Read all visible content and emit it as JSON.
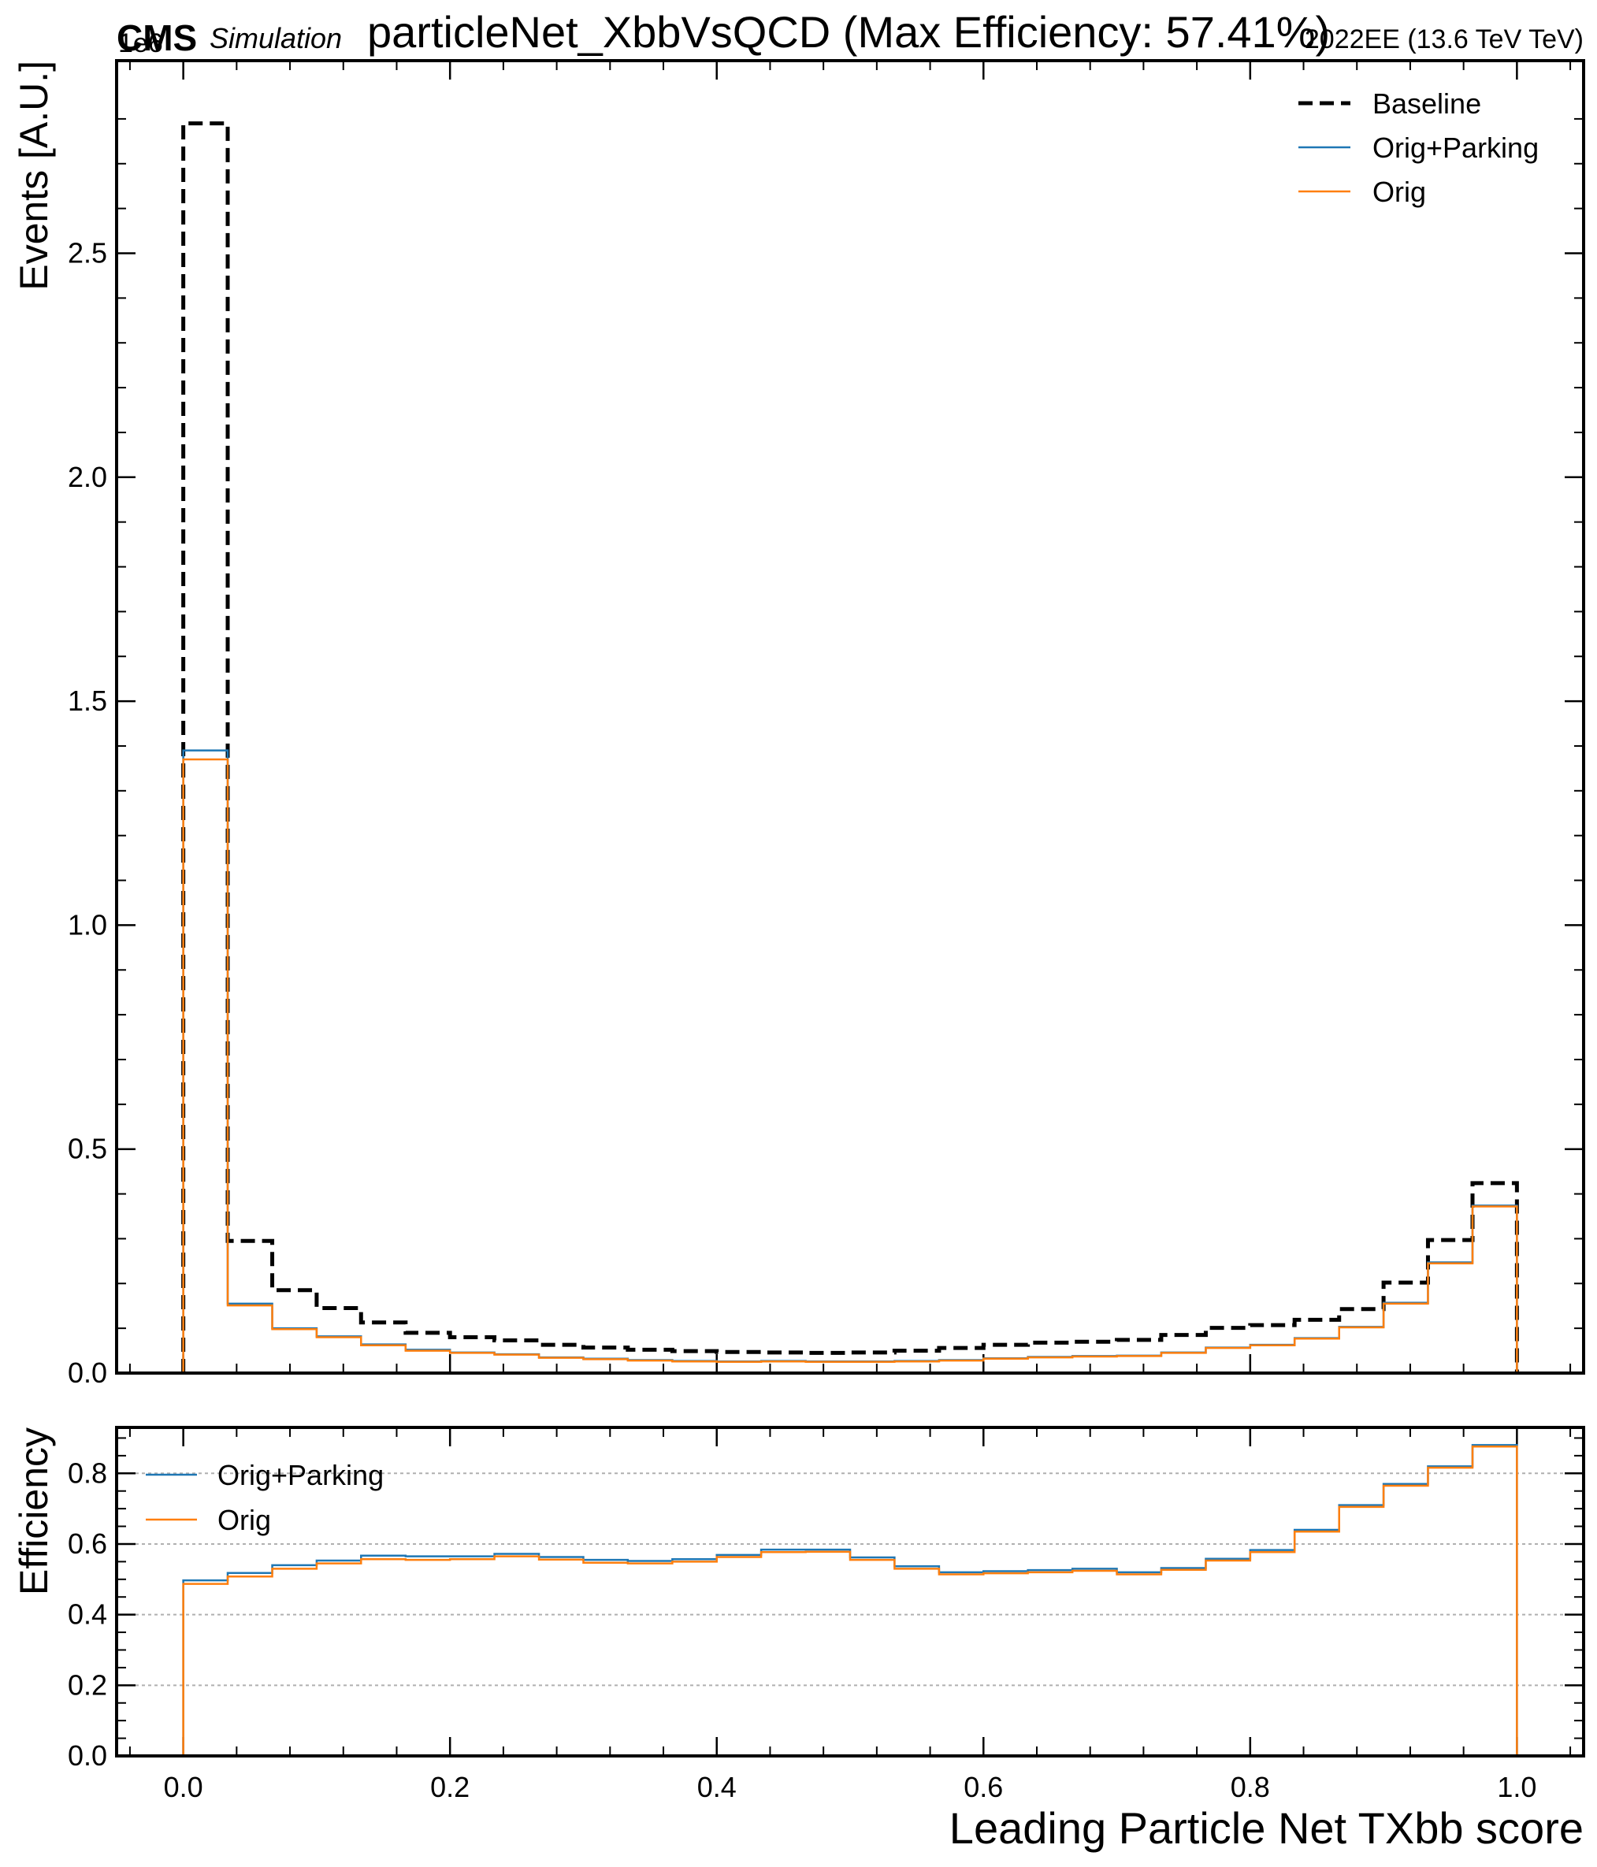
{
  "header": {
    "cms": "CMS",
    "sim": "Simulation",
    "title": "particleNet_XbbVsQCD (Max Efficiency: 57.41%)",
    "lumi_left": "1e6",
    "lumi_right": "2022EE (13.6 TeV TeV)"
  },
  "chart_data": [
    {
      "type": "line",
      "style": "step histogram",
      "panel": "main",
      "xlabel": "Leading Particle Net TXbb score",
      "ylabel": "Events [A.U.]",
      "xlim": [
        -0.05,
        1.05
      ],
      "ylim": [
        0,
        2.93
      ],
      "xticks": [
        0.0,
        0.2,
        0.4,
        0.6,
        0.8,
        1.0
      ],
      "xtick_labels": [
        "0.0",
        "0.2",
        "0.4",
        "0.6",
        "0.8",
        "1.0"
      ],
      "yticks": [
        0.0,
        0.5,
        1.0,
        1.5,
        2.0,
        2.5
      ],
      "ytick_labels": [
        "0.0",
        "0.5",
        "1.0",
        "1.5",
        "2.0",
        "2.5"
      ],
      "bin_edges": [
        0.0,
        0.0333,
        0.0667,
        0.1,
        0.1333,
        0.1667,
        0.2,
        0.2333,
        0.2667,
        0.3,
        0.3333,
        0.3667,
        0.4,
        0.4333,
        0.4667,
        0.5,
        0.5333,
        0.5667,
        0.6,
        0.6333,
        0.6667,
        0.7,
        0.7333,
        0.7667,
        0.8,
        0.8333,
        0.8667,
        0.9,
        0.9333,
        0.9667,
        1.0
      ],
      "legend_position": "upper right",
      "series": [
        {
          "name": "Baseline",
          "color": "#000000",
          "linestyle": "dashed",
          "values": [
            2.79,
            0.295,
            0.185,
            0.145,
            0.113,
            0.09,
            0.08,
            0.073,
            0.063,
            0.057,
            0.052,
            0.049,
            0.047,
            0.046,
            0.045,
            0.046,
            0.05,
            0.056,
            0.063,
            0.068,
            0.07,
            0.074,
            0.085,
            0.101,
            0.107,
            0.119,
            0.143,
            0.202,
            0.297,
            0.424
          ]
        },
        {
          "name": "Orig+Parking",
          "color": "#1f77b4",
          "linestyle": "solid",
          "values": [
            1.39,
            0.155,
            0.1,
            0.082,
            0.064,
            0.052,
            0.046,
            0.042,
            0.035,
            0.032,
            0.029,
            0.027,
            0.026,
            0.027,
            0.026,
            0.026,
            0.027,
            0.029,
            0.033,
            0.036,
            0.038,
            0.039,
            0.046,
            0.057,
            0.063,
            0.078,
            0.103,
            0.157,
            0.247,
            0.374
          ]
        },
        {
          "name": "Orig",
          "color": "#ff7f0e",
          "linestyle": "solid",
          "values": [
            1.37,
            0.151,
            0.098,
            0.08,
            0.062,
            0.05,
            0.045,
            0.041,
            0.034,
            0.031,
            0.028,
            0.026,
            0.025,
            0.026,
            0.025,
            0.025,
            0.026,
            0.028,
            0.032,
            0.035,
            0.037,
            0.038,
            0.045,
            0.056,
            0.062,
            0.077,
            0.102,
            0.155,
            0.245,
            0.372
          ]
        }
      ]
    },
    {
      "type": "line",
      "style": "step histogram",
      "panel": "ratio",
      "xlabel": "Leading Particle Net TXbb score",
      "ylabel": "Efficiency",
      "xlim": [
        -0.05,
        1.05
      ],
      "ylim": [
        0,
        0.93
      ],
      "yticks": [
        0.0,
        0.2,
        0.4,
        0.6,
        0.8
      ],
      "ytick_labels": [
        "0.0",
        "0.2",
        "0.4",
        "0.6",
        "0.8"
      ],
      "grid": true,
      "legend_position": "upper left",
      "series": [
        {
          "name": "Orig+Parking",
          "color": "#1f77b4",
          "values": [
            0.497,
            0.518,
            0.54,
            0.553,
            0.567,
            0.565,
            0.565,
            0.572,
            0.563,
            0.555,
            0.552,
            0.557,
            0.569,
            0.584,
            0.584,
            0.562,
            0.537,
            0.52,
            0.523,
            0.526,
            0.53,
            0.52,
            0.532,
            0.558,
            0.583,
            0.64,
            0.71,
            0.77,
            0.82,
            0.88
          ]
        },
        {
          "name": "Orig",
          "color": "#ff7f0e",
          "values": [
            0.487,
            0.508,
            0.53,
            0.545,
            0.557,
            0.555,
            0.557,
            0.565,
            0.556,
            0.547,
            0.545,
            0.55,
            0.563,
            0.577,
            0.578,
            0.555,
            0.53,
            0.514,
            0.517,
            0.52,
            0.524,
            0.514,
            0.527,
            0.553,
            0.577,
            0.635,
            0.705,
            0.765,
            0.816,
            0.876
          ]
        }
      ]
    }
  ]
}
